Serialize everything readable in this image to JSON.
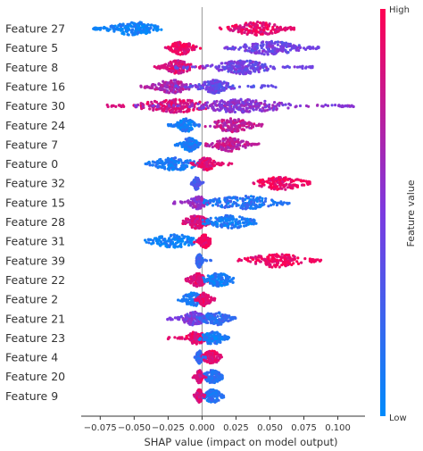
{
  "chart_data": {
    "type": "scatter",
    "subtype": "shap-beeswarm",
    "xlabel": "SHAP value (impact on model output)",
    "xlim": [
      -0.089,
      0.12
    ],
    "xticks": [
      -0.075,
      -0.05,
      -0.025,
      0.0,
      0.025,
      0.05,
      0.075,
      0.1
    ],
    "xtick_labels": [
      "−0.075",
      "−0.050",
      "−0.025",
      "0.000",
      "0.025",
      "0.050",
      "0.075",
      "0.100"
    ],
    "zero_line": true,
    "colorbar": {
      "title": "Feature value",
      "high_label": "High",
      "low_label": "Low",
      "high_color": "#ff0052",
      "low_color": "#008bfb"
    },
    "features": [
      {
        "name": "Feature 27",
        "min": -0.08,
        "max": 0.068,
        "clusters": [
          {
            "center": -0.05,
            "spread": 0.008,
            "width": 0.032,
            "value": 0.05
          },
          {
            "center": 0.04,
            "spread": 0.009,
            "width": 0.028,
            "value": 0.9
          }
        ]
      },
      {
        "name": "Feature 5",
        "min": -0.027,
        "max": 0.086,
        "clusters": [
          {
            "center": -0.015,
            "spread": 0.004,
            "width": 0.014,
            "value": 0.95
          },
          {
            "center": 0.05,
            "spread": 0.01,
            "width": 0.036,
            "value": 0.45
          }
        ]
      },
      {
        "name": "Feature 8",
        "min": -0.035,
        "max": 0.082,
        "clusters": [
          {
            "center": -0.018,
            "spread": 0.005,
            "width": 0.02,
            "value": 0.85
          },
          {
            "center": 0.03,
            "spread": 0.01,
            "width": 0.05,
            "value": 0.45
          }
        ]
      },
      {
        "name": "Feature 16",
        "min": -0.045,
        "max": 0.055,
        "clusters": [
          {
            "center": -0.022,
            "spread": 0.006,
            "width": 0.024,
            "value": 0.7
          },
          {
            "center": 0.01,
            "spread": 0.006,
            "width": 0.03,
            "value": 0.4
          }
        ]
      },
      {
        "name": "Feature 30",
        "min": -0.07,
        "max": 0.112,
        "clusters": [
          {
            "center": -0.02,
            "spread": 0.012,
            "width": 0.05,
            "value": 0.85
          },
          {
            "center": 0.03,
            "spread": 0.015,
            "width": 0.08,
            "value": 0.55
          }
        ]
      },
      {
        "name": "Feature 24",
        "min": -0.025,
        "max": 0.045,
        "clusters": [
          {
            "center": -0.012,
            "spread": 0.003,
            "width": 0.012,
            "value": 0.1
          },
          {
            "center": 0.022,
            "spread": 0.007,
            "width": 0.02,
            "value": 0.75
          }
        ]
      },
      {
        "name": "Feature 7",
        "min": -0.02,
        "max": 0.042,
        "clusters": [
          {
            "center": -0.009,
            "spread": 0.003,
            "width": 0.01,
            "value": 0.1
          },
          {
            "center": 0.02,
            "spread": 0.006,
            "width": 0.018,
            "value": 0.75
          }
        ]
      },
      {
        "name": "Feature 0",
        "min": -0.042,
        "max": 0.022,
        "clusters": [
          {
            "center": -0.02,
            "spread": 0.008,
            "width": 0.02,
            "value": 0.1
          },
          {
            "center": 0.003,
            "spread": 0.003,
            "width": 0.012,
            "value": 0.9
          }
        ]
      },
      {
        "name": "Feature 32",
        "min": -0.008,
        "max": 0.08,
        "clusters": [
          {
            "center": -0.004,
            "spread": 0.001,
            "width": 0.004,
            "value": 0.3
          },
          {
            "center": 0.058,
            "spread": 0.008,
            "width": 0.02,
            "value": 0.95
          }
        ]
      },
      {
        "name": "Feature 15",
        "min": -0.022,
        "max": 0.065,
        "clusters": [
          {
            "center": -0.003,
            "spread": 0.003,
            "width": 0.01,
            "value": 0.6
          },
          {
            "center": 0.03,
            "spread": 0.012,
            "width": 0.03,
            "value": 0.15
          }
        ]
      },
      {
        "name": "Feature 28",
        "min": -0.015,
        "max": 0.04,
        "clusters": [
          {
            "center": -0.004,
            "spread": 0.004,
            "width": 0.012,
            "value": 0.85
          },
          {
            "center": 0.02,
            "spread": 0.008,
            "width": 0.02,
            "value": 0.1
          }
        ]
      },
      {
        "name": "Feature 31",
        "min": -0.042,
        "max": 0.006,
        "clusters": [
          {
            "center": -0.02,
            "spread": 0.008,
            "width": 0.02,
            "value": 0.05
          },
          {
            "center": 0.002,
            "spread": 0.002,
            "width": 0.006,
            "value": 0.95
          }
        ]
      },
      {
        "name": "Feature 39",
        "min": -0.004,
        "max": 0.088,
        "clusters": [
          {
            "center": -0.002,
            "spread": 0.001,
            "width": 0.004,
            "value": 0.2
          },
          {
            "center": 0.055,
            "spread": 0.01,
            "width": 0.03,
            "value": 0.95
          }
        ]
      },
      {
        "name": "Feature 22",
        "min": -0.012,
        "max": 0.025,
        "clusters": [
          {
            "center": -0.003,
            "spread": 0.003,
            "width": 0.01,
            "value": 0.85
          },
          {
            "center": 0.012,
            "spread": 0.005,
            "width": 0.012,
            "value": 0.1
          }
        ]
      },
      {
        "name": "Feature 2",
        "min": -0.018,
        "max": 0.01,
        "clusters": [
          {
            "center": -0.006,
            "spread": 0.004,
            "width": 0.01,
            "value": 0.1
          },
          {
            "center": 0.002,
            "spread": 0.002,
            "width": 0.008,
            "value": 0.9
          }
        ]
      },
      {
        "name": "Feature 21",
        "min": -0.028,
        "max": 0.026,
        "clusters": [
          {
            "center": -0.006,
            "spread": 0.004,
            "width": 0.012,
            "value": 0.5
          },
          {
            "center": 0.01,
            "spread": 0.005,
            "width": 0.014,
            "value": 0.2
          }
        ]
      },
      {
        "name": "Feature 23",
        "min": -0.025,
        "max": 0.022,
        "clusters": [
          {
            "center": -0.004,
            "spread": 0.003,
            "width": 0.012,
            "value": 0.9
          },
          {
            "center": 0.008,
            "spread": 0.004,
            "width": 0.012,
            "value": 0.1
          }
        ]
      },
      {
        "name": "Feature 4",
        "min": -0.008,
        "max": 0.015,
        "clusters": [
          {
            "center": -0.002,
            "spread": 0.001,
            "width": 0.004,
            "value": 0.2
          },
          {
            "center": 0.007,
            "spread": 0.003,
            "width": 0.008,
            "value": 0.9
          }
        ]
      },
      {
        "name": "Feature 20",
        "min": -0.008,
        "max": 0.015,
        "clusters": [
          {
            "center": -0.002,
            "spread": 0.001,
            "width": 0.004,
            "value": 0.85
          },
          {
            "center": 0.008,
            "spread": 0.003,
            "width": 0.008,
            "value": 0.15
          }
        ]
      },
      {
        "name": "Feature 9",
        "min": -0.009,
        "max": 0.016,
        "clusters": [
          {
            "center": -0.002,
            "spread": 0.001,
            "width": 0.004,
            "value": 0.85
          },
          {
            "center": 0.008,
            "spread": 0.003,
            "width": 0.008,
            "value": 0.15
          }
        ]
      }
    ]
  }
}
